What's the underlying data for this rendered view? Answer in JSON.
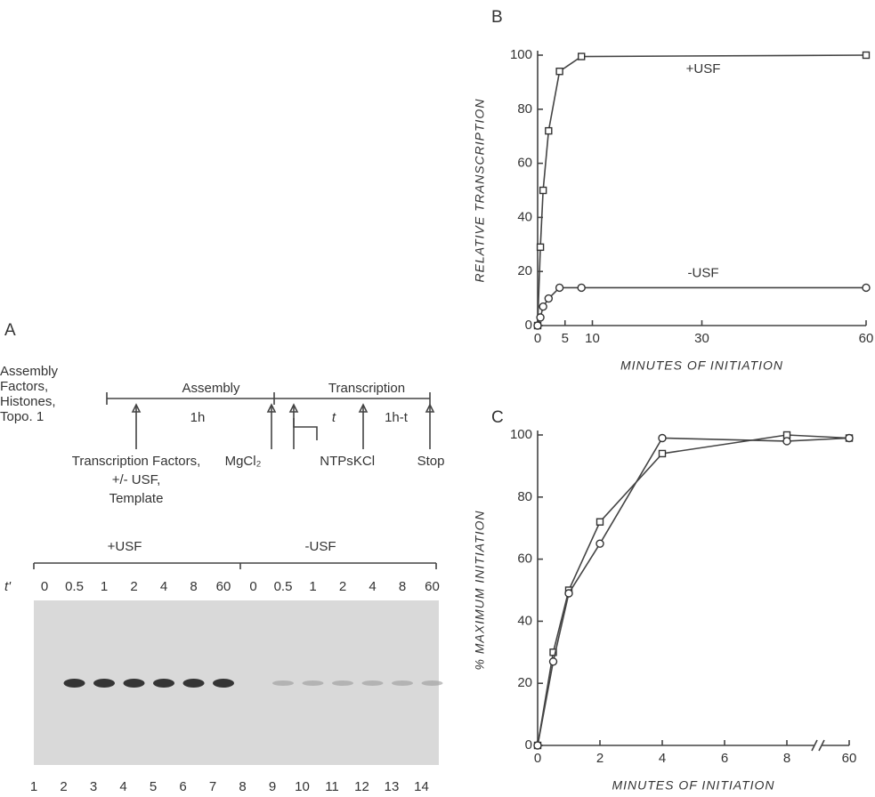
{
  "panel_a": {
    "label": "A",
    "timeline": {
      "start_label": [
        "Assembly",
        "Factors,",
        "Histones,",
        "Topo. 1"
      ],
      "phases": [
        "Assembly",
        "Transcription"
      ],
      "durations": [
        "1h",
        "t",
        "1h-t"
      ],
      "additions": [
        [
          "Transcription Factors,",
          "+/- USF,",
          "Template"
        ],
        [
          "MgCl₂"
        ],
        [
          "NTPs"
        ],
        [
          "KCl"
        ],
        [
          "Stop"
        ]
      ]
    },
    "gel": {
      "groups": [
        "+USF",
        "-USF"
      ],
      "time_label": "t'",
      "times": [
        0,
        0.5,
        1,
        2,
        4,
        8,
        60,
        0,
        0.5,
        1,
        2,
        4,
        8,
        60
      ],
      "lanes": [
        1,
        2,
        3,
        4,
        5,
        6,
        7,
        8,
        9,
        10,
        11,
        12,
        13,
        14
      ]
    }
  },
  "chart_data": [
    {
      "type": "line",
      "panel_label": "B",
      "xlabel": "MINUTES OF INITIATION",
      "ylabel": "RELATIVE TRANSCRIPTION",
      "xlim": [
        0,
        60
      ],
      "xticks": [
        0,
        5,
        10,
        30,
        60
      ],
      "ylim": [
        0,
        100
      ],
      "yticks": [
        0,
        20,
        40,
        60,
        80,
        100
      ],
      "x": [
        0,
        0.5,
        1,
        2,
        4,
        8,
        60
      ],
      "series": [
        {
          "name": "+USF",
          "marker": "square",
          "color": "#333",
          "values": [
            0,
            29,
            50,
            72,
            94,
            99.5,
            100
          ]
        },
        {
          "name": "-USF",
          "marker": "circle",
          "color": "#333",
          "values": [
            0,
            3,
            7,
            10,
            14,
            14,
            14
          ]
        }
      ]
    },
    {
      "type": "line",
      "panel_label": "C",
      "xlabel": "MINUTES OF INITIATION",
      "ylabel": "% MAXIMUM INITIATION",
      "xlim": [
        0,
        60
      ],
      "xticks": [
        0,
        2,
        4,
        6,
        8,
        60
      ],
      "xscale": "broken",
      "ylim": [
        0,
        100
      ],
      "yticks": [
        0,
        20,
        40,
        60,
        80,
        100
      ],
      "x": [
        0,
        0.5,
        1,
        2,
        4,
        8,
        60
      ],
      "series": [
        {
          "marker": "square",
          "color": "#333",
          "values": [
            0,
            30,
            50,
            72,
            94,
            100,
            99
          ]
        },
        {
          "marker": "circle",
          "color": "#333",
          "values": [
            0,
            27,
            49,
            65,
            99,
            98,
            99
          ]
        }
      ]
    }
  ]
}
